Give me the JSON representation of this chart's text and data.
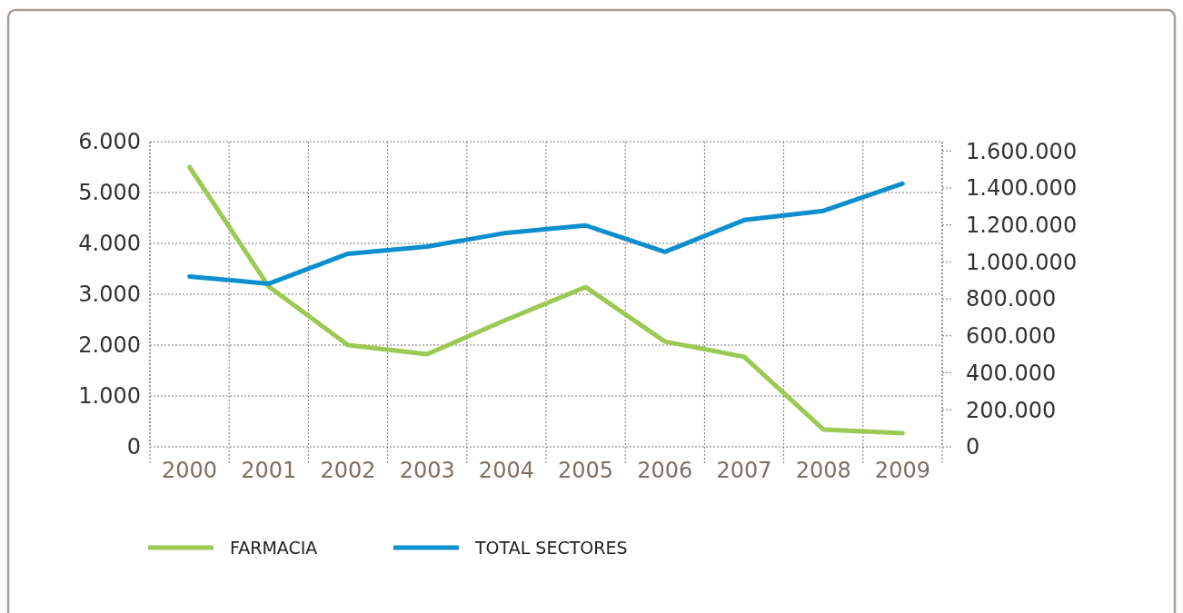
{
  "chart_data": {
    "type": "line",
    "categories": [
      "2000",
      "2001",
      "2002",
      "2003",
      "2004",
      "2005",
      "2006",
      "2007",
      "2008",
      "2009"
    ],
    "series": [
      {
        "name": "FARMACIA",
        "color": "#9bc953",
        "values": [
          5500,
          3150,
          2000,
          1820,
          2500,
          3140,
          2070,
          1770,
          340,
          270
        ]
      },
      {
        "name": "TOTAL SECTORES",
        "color": "#0e8fcd",
        "axis": "y2",
        "values": [
          921000,
          882000,
          1044000,
          1083000,
          1157000,
          1197000,
          1054000,
          1226000,
          1276000,
          1423000
        ]
      }
    ],
    "ylim": [
      0,
      6000
    ],
    "yticks": [
      {
        "value": 0,
        "label": "0"
      },
      {
        "value": 1000,
        "label": "1.000"
      },
      {
        "value": 2000,
        "label": "2.000"
      },
      {
        "value": 3000,
        "label": "3.000"
      },
      {
        "value": 4000,
        "label": "4.000"
      },
      {
        "value": 5000,
        "label": "5.000"
      },
      {
        "value": 6000,
        "label": "6.000"
      }
    ],
    "y2lim": [
      0,
      1650000
    ],
    "y2ticks": [
      {
        "value": 0,
        "label": "0"
      },
      {
        "value": 200000,
        "label": "200.000"
      },
      {
        "value": 400000,
        "label": "400.000"
      },
      {
        "value": 600000,
        "label": "600.000"
      },
      {
        "value": 800000,
        "label": "800.000"
      },
      {
        "value": 1000000,
        "label": "1.000.000"
      },
      {
        "value": 1200000,
        "label": "1.200.000"
      },
      {
        "value": 1400000,
        "label": "1.400.000"
      },
      {
        "value": 1600000,
        "label": "1.600.000"
      }
    ],
    "grid": true,
    "legend": "bottom",
    "marker": "none",
    "line_style": "solid"
  }
}
